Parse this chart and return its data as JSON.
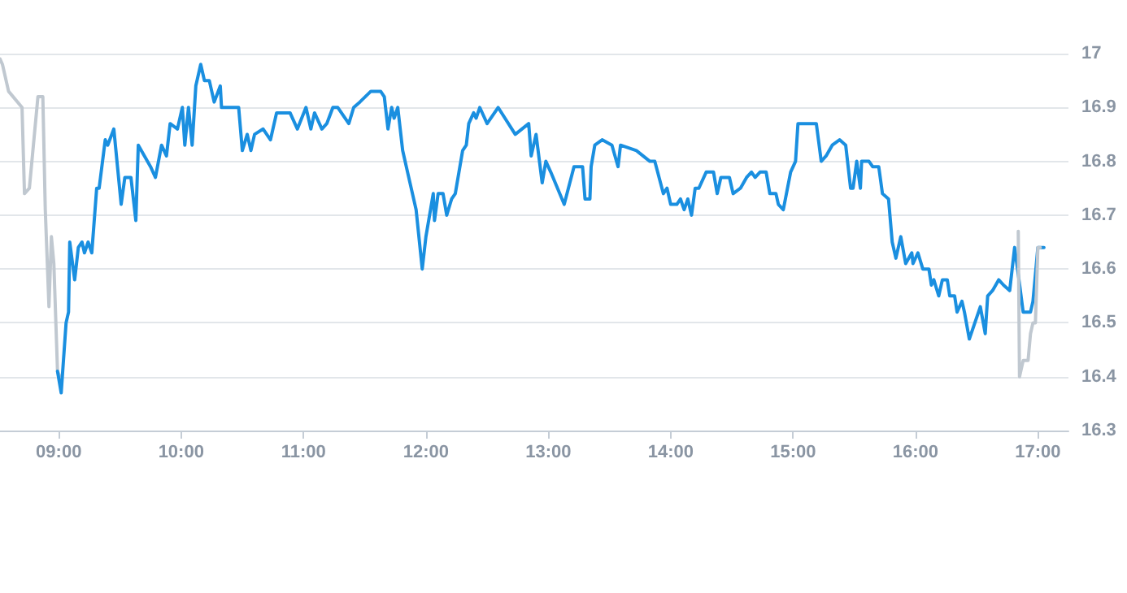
{
  "chart_data": {
    "type": "line",
    "grid": "y",
    "marker": "none",
    "line_style": "solid",
    "xlim": [
      8.52,
      17.25
    ],
    "ylim": [
      16.3,
      17
    ],
    "xticks": [
      {
        "value": 9,
        "label": "09:00"
      },
      {
        "value": 10,
        "label": "10:00"
      },
      {
        "value": 11,
        "label": "11:00"
      },
      {
        "value": 12,
        "label": "12:00"
      },
      {
        "value": 13,
        "label": "13:00"
      },
      {
        "value": 14,
        "label": "14:00"
      },
      {
        "value": 15,
        "label": "15:00"
      },
      {
        "value": 16,
        "label": "16:00"
      },
      {
        "value": 17,
        "label": "17:00"
      }
    ],
    "yticks": [
      16.3,
      16.4,
      16.5,
      16.6,
      16.7,
      16.8,
      16.9,
      17
    ],
    "series": [
      {
        "color": "#c0c8d0",
        "x": [
          8.52,
          8.54,
          8.59,
          8.7,
          8.72,
          8.76,
          8.83,
          8.87,
          8.89,
          8.92,
          8.94,
          8.96,
          8.99,
          9.01
        ],
        "values": [
          16.99,
          16.98,
          16.93,
          16.9,
          16.74,
          16.75,
          16.92,
          16.92,
          16.71,
          16.53,
          16.66,
          16.61,
          16.41,
          16.4
        ]
      },
      {
        "color": "#1a8fe0",
        "x": [
          8.99,
          9.02,
          9.06,
          9.08,
          9.09,
          9.13,
          9.16,
          9.19,
          9.21,
          9.24,
          9.27,
          9.31,
          9.33,
          9.38,
          9.4,
          9.45,
          9.51,
          9.54,
          9.59,
          9.63,
          9.65,
          9.7,
          9.75,
          9.79,
          9.84,
          9.88,
          9.91,
          9.97,
          10.01,
          10.03,
          10.06,
          10.09,
          10.12,
          10.16,
          10.19,
          10.23,
          10.27,
          10.32,
          10.33,
          10.47,
          10.5,
          10.54,
          10.57,
          10.6,
          10.67,
          10.73,
          10.78,
          10.89,
          10.95,
          11.02,
          11.06,
          11.09,
          11.15,
          11.19,
          11.24,
          11.28,
          11.37,
          11.41,
          11.46,
          11.55,
          11.59,
          11.63,
          11.66,
          11.69,
          11.72,
          11.74,
          11.77,
          11.81,
          11.85,
          11.87,
          11.92,
          11.97,
          12.0,
          12.06,
          12.07,
          12.1,
          12.14,
          12.17,
          12.21,
          12.24,
          12.3,
          12.33,
          12.35,
          12.39,
          12.41,
          12.44,
          12.5,
          12.59,
          12.73,
          12.84,
          12.86,
          12.9,
          12.95,
          12.98,
          13.02,
          13.13,
          13.21,
          13.28,
          13.3,
          13.34,
          13.35,
          13.38,
          13.44,
          13.52,
          13.57,
          13.59,
          13.72,
          13.83,
          13.87,
          13.94,
          13.97,
          14.0,
          14.05,
          14.08,
          14.11,
          14.14,
          14.17,
          14.2,
          14.23,
          14.29,
          14.35,
          14.38,
          14.41,
          14.48,
          14.51,
          14.57,
          14.62,
          14.66,
          14.69,
          14.73,
          14.78,
          14.81,
          14.86,
          14.88,
          14.92,
          14.98,
          15.02,
          15.04,
          15.09,
          15.19,
          15.23,
          15.27,
          15.32,
          15.38,
          15.43,
          15.47,
          15.49,
          15.52,
          15.55,
          15.56,
          15.62,
          15.65,
          15.7,
          15.73,
          15.78,
          15.81,
          15.84,
          15.88,
          15.92,
          15.97,
          15.98,
          16.02,
          16.06,
          16.11,
          16.13,
          16.15,
          16.19,
          16.22,
          16.26,
          16.28,
          16.32,
          16.34,
          16.38,
          16.4,
          16.44,
          16.5,
          16.53,
          16.57,
          16.59,
          16.63,
          16.68,
          16.72,
          16.77,
          16.81,
          16.84,
          16.88,
          16.94,
          16.96,
          17.0,
          17.05
        ],
        "values": [
          16.41,
          16.37,
          16.5,
          16.52,
          16.65,
          16.58,
          16.64,
          16.65,
          16.63,
          16.65,
          16.63,
          16.75,
          16.75,
          16.84,
          16.83,
          16.86,
          16.72,
          16.77,
          16.77,
          16.69,
          16.83,
          16.81,
          16.79,
          16.77,
          16.83,
          16.81,
          16.87,
          16.86,
          16.9,
          16.83,
          16.9,
          16.83,
          16.94,
          16.98,
          16.95,
          16.95,
          16.91,
          16.94,
          16.9,
          16.9,
          16.82,
          16.85,
          16.82,
          16.85,
          16.86,
          16.84,
          16.89,
          16.89,
          16.86,
          16.9,
          16.86,
          16.89,
          16.86,
          16.87,
          16.9,
          16.9,
          16.87,
          16.9,
          16.91,
          16.93,
          16.93,
          16.93,
          16.92,
          16.86,
          16.9,
          16.88,
          16.9,
          16.82,
          16.78,
          16.76,
          16.71,
          16.6,
          16.66,
          16.74,
          16.69,
          16.74,
          16.74,
          16.7,
          16.73,
          16.74,
          16.82,
          16.83,
          16.87,
          16.89,
          16.88,
          16.9,
          16.87,
          16.9,
          16.85,
          16.87,
          16.81,
          16.85,
          16.76,
          16.8,
          16.78,
          16.72,
          16.79,
          16.79,
          16.73,
          16.73,
          16.79,
          16.83,
          16.84,
          16.83,
          16.79,
          16.83,
          16.82,
          16.8,
          16.8,
          16.74,
          16.75,
          16.72,
          16.72,
          16.73,
          16.71,
          16.73,
          16.7,
          16.75,
          16.75,
          16.78,
          16.78,
          16.74,
          16.77,
          16.77,
          16.74,
          16.75,
          16.77,
          16.78,
          16.77,
          16.78,
          16.78,
          16.74,
          16.74,
          16.72,
          16.71,
          16.78,
          16.8,
          16.87,
          16.87,
          16.87,
          16.8,
          16.81,
          16.83,
          16.84,
          16.83,
          16.75,
          16.75,
          16.8,
          16.75,
          16.8,
          16.8,
          16.79,
          16.79,
          16.74,
          16.73,
          16.65,
          16.62,
          16.66,
          16.61,
          16.63,
          16.61,
          16.63,
          16.6,
          16.6,
          16.57,
          16.58,
          16.55,
          16.58,
          16.58,
          16.55,
          16.55,
          16.52,
          16.54,
          16.52,
          16.47,
          16.51,
          16.53,
          16.48,
          16.55,
          16.56,
          16.58,
          16.57,
          16.56,
          16.64,
          16.59,
          16.52,
          16.52,
          16.54,
          16.64,
          16.64
        ]
      },
      {
        "color": "#c0c8d0",
        "x": [
          16.84,
          16.85,
          16.88,
          16.92,
          16.94,
          16.96,
          16.98,
          17.0,
          17.02
        ],
        "values": [
          16.67,
          16.4,
          16.43,
          16.43,
          16.48,
          16.5,
          16.5,
          16.64,
          16.64
        ]
      }
    ]
  }
}
